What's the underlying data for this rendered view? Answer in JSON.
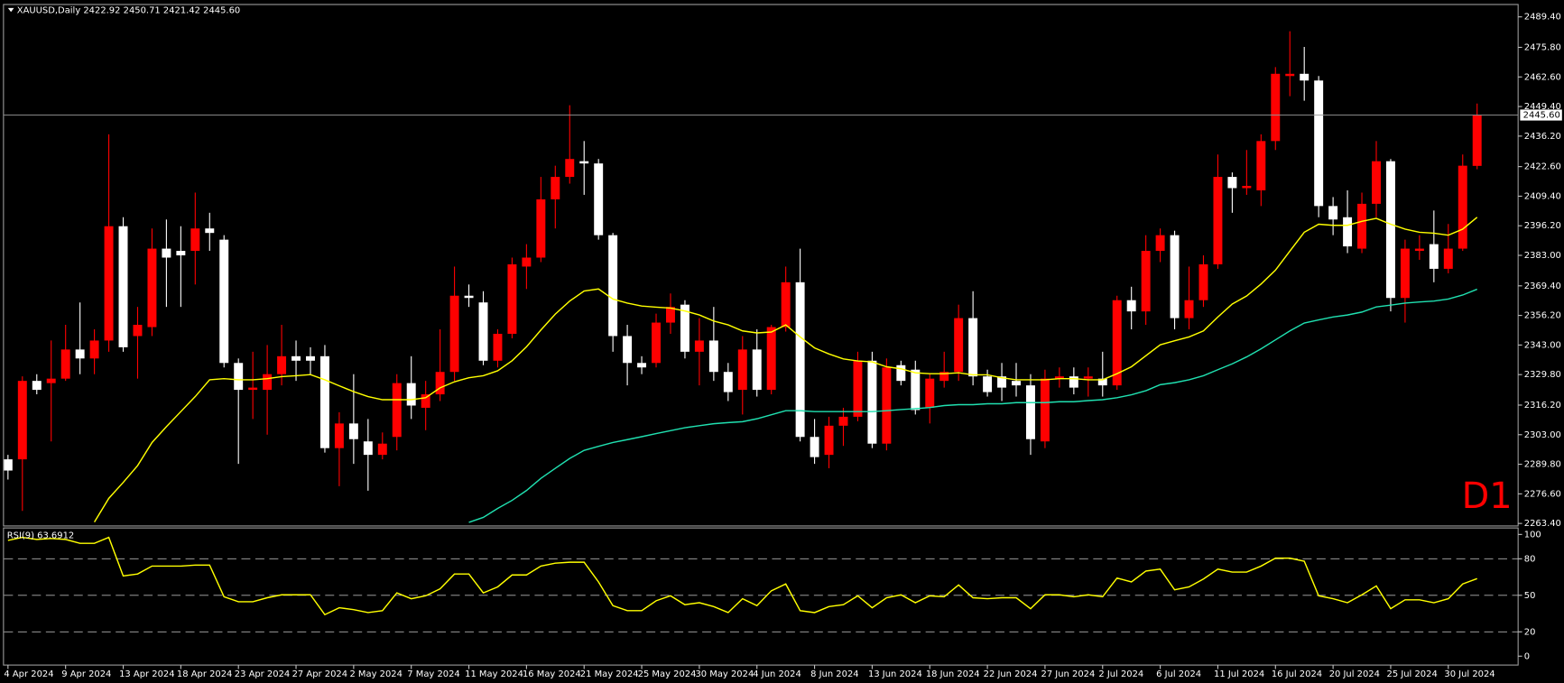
{
  "chart_data": [
    {
      "type": "candlestick",
      "title": "XAUUSD,Daily  2422.92 2450.71 2421.42 2445.60",
      "annotation": "D1",
      "categories": [
        "4 Apr 2024",
        null,
        null,
        null,
        "9 Apr 2024",
        null,
        null,
        null,
        "13 Apr 2024",
        null,
        null,
        null,
        "18 Apr 2024",
        null,
        null,
        null,
        "23 Apr 2024",
        null,
        null,
        null,
        "27 Apr 2024",
        null,
        null,
        null,
        "2 May 2024",
        null,
        null,
        null,
        "7 May 2024",
        null,
        null,
        null,
        "11 May 2024",
        null,
        null,
        null,
        "16 May 2024",
        null,
        null,
        null,
        "21 May 2024",
        null,
        null,
        null,
        "25 May 2024",
        null,
        null,
        null,
        "30 May 2024",
        null,
        null,
        null,
        "4 Jun 2024",
        null,
        null,
        null,
        "8 Jun 2024",
        null,
        null,
        null,
        "13 Jun 2024",
        null,
        null,
        null,
        "18 Jun 2024",
        null,
        null,
        null,
        "22 Jun 2024",
        null,
        null,
        null,
        "27 Jun 2024",
        null,
        null,
        null,
        "2 Jul 2024",
        null,
        null,
        null,
        "6 Jul 2024",
        null,
        null,
        null,
        "11 Jul 2024",
        null,
        null,
        null,
        "16 Jul 2024",
        null,
        null,
        null,
        "20 Jul 2024",
        null,
        null,
        null,
        "25 Jul 2024",
        null,
        null,
        null,
        "30 Jul 2024",
        null,
        null
      ],
      "open": [
        2292,
        2292,
        2327,
        2326,
        2328,
        2341,
        2337,
        2345,
        2396,
        2347,
        2351,
        2386,
        2385,
        2385,
        2395,
        2390,
        2335,
        2323,
        2323,
        2330,
        2338,
        2338,
        2338,
        2297,
        2308,
        2300,
        2294,
        2302,
        2326,
        2315,
        2321,
        2331,
        2365,
        2362,
        2336,
        2348,
        2378,
        2382,
        2408,
        2418,
        2425,
        2424,
        2392,
        2347,
        2335,
        2335,
        2353,
        2361,
        2340,
        2345,
        2331,
        2323,
        2341,
        2323,
        2351,
        2371,
        2302,
        2294,
        2307,
        2311,
        2336,
        2299,
        2334,
        2332,
        2315,
        2327,
        2331,
        2355,
        2329,
        2329,
        2327,
        2325,
        2300,
        2328,
        2329,
        2328,
        2328,
        2325,
        2363,
        2358,
        2385,
        2392,
        2355,
        2363,
        2379,
        2418,
        2413,
        2412,
        2434,
        2463,
        2464,
        2461,
        2405,
        2400,
        2386,
        2406,
        2425,
        2364,
        2385,
        2388,
        2377,
        2386,
        2422.92
      ],
      "high": [
        2294,
        2329,
        2330,
        2345,
        2352,
        2362,
        2350,
        2437,
        2400,
        2360,
        2395,
        2399,
        2396,
        2411,
        2402,
        2392,
        2337,
        2340,
        2343,
        2352,
        2345,
        2342,
        2343,
        2313,
        2330,
        2310,
        2304,
        2330,
        2338,
        2327,
        2350,
        2378,
        2370,
        2367,
        2350,
        2382,
        2388,
        2418,
        2423,
        2450,
        2434,
        2426,
        2393,
        2352,
        2338,
        2357,
        2366,
        2363,
        2355,
        2360,
        2335,
        2347,
        2350,
        2352,
        2378,
        2386,
        2310,
        2311,
        2315,
        2340,
        2340,
        2337,
        2336,
        2336,
        2330,
        2340,
        2361,
        2367,
        2332,
        2335,
        2335,
        2330,
        2332,
        2333,
        2333,
        2333,
        2340,
        2365,
        2369,
        2392,
        2395,
        2394,
        2378,
        2383,
        2428,
        2420,
        2430,
        2437,
        2467,
        2483,
        2476,
        2463,
        2409,
        2412,
        2411,
        2434,
        2426,
        2390,
        2392,
        2403,
        2397,
        2428,
        2450.71
      ],
      "low": [
        2283,
        2269,
        2321,
        2300,
        2327,
        2330,
        2330,
        2340,
        2340,
        2328,
        2347,
        2360,
        2360,
        2370,
        2385,
        2333,
        2290,
        2310,
        2303,
        2325,
        2327,
        2330,
        2295,
        2280,
        2290,
        2278,
        2292,
        2296,
        2310,
        2305,
        2318,
        2327,
        2360,
        2334,
        2333,
        2346,
        2368,
        2380,
        2395,
        2415,
        2410,
        2390,
        2340,
        2325,
        2330,
        2333,
        2348,
        2337,
        2325,
        2327,
        2318,
        2312,
        2320,
        2321,
        2349,
        2300,
        2290,
        2288,
        2298,
        2309,
        2297,
        2296,
        2325,
        2312,
        2308,
        2324,
        2327,
        2325,
        2320,
        2318,
        2320,
        2294,
        2297,
        2324,
        2321,
        2320,
        2320,
        2323,
        2350,
        2352,
        2380,
        2350,
        2350,
        2360,
        2377,
        2402,
        2410,
        2405,
        2430,
        2454,
        2452,
        2400,
        2392,
        2384,
        2384,
        2400,
        2358,
        2353,
        2381,
        2371,
        2375,
        2385,
        2421.42
      ],
      "close": [
        2287,
        2327,
        2323,
        2328,
        2341,
        2337,
        2345,
        2396,
        2342,
        2352,
        2386,
        2382,
        2383,
        2395,
        2393,
        2335,
        2323,
        2324,
        2330,
        2338,
        2336,
        2336,
        2297,
        2308,
        2301,
        2294,
        2299,
        2326,
        2316,
        2321,
        2331,
        2365,
        2364,
        2336,
        2348,
        2379,
        2382,
        2408,
        2418,
        2426,
        2424,
        2392,
        2347,
        2335,
        2333,
        2353,
        2360,
        2340,
        2345,
        2331,
        2322,
        2341,
        2323,
        2351,
        2371,
        2302,
        2293,
        2307,
        2311,
        2336,
        2299,
        2333,
        2327,
        2314,
        2328,
        2331,
        2355,
        2329,
        2322,
        2324,
        2325,
        2301,
        2328,
        2329,
        2324,
        2329,
        2325,
        2363,
        2358,
        2385,
        2392,
        2355,
        2363,
        2379,
        2418,
        2413,
        2414,
        2434,
        2464,
        2464,
        2461,
        2405,
        2399,
        2387,
        2406,
        2425,
        2364,
        2386,
        2386,
        2377,
        2386,
        2423,
        2445.6
      ],
      "up_color": "#ff0000",
      "down_color": "#ffffff",
      "series": [
        {
          "color": "#ffff00",
          "values": [
            null,
            null,
            null,
            null,
            null,
            null,
            2264,
            2274.6,
            2281.7,
            2289.2,
            2299.5,
            2306.6,
            2313.3,
            2320,
            2327.5,
            2328,
            2327.5,
            2327.5,
            2328,
            2328.9,
            2329.3,
            2329.8,
            2327.5,
            2324.8,
            2322.2,
            2320,
            2318.6,
            2318.6,
            2318.6,
            2319.5,
            2323.9,
            2326.6,
            2328.4,
            2329.3,
            2331.5,
            2336,
            2342.2,
            2349.7,
            2356.8,
            2362.6,
            2367.1,
            2368,
            2363.5,
            2361.7,
            2360.4,
            2359.9,
            2359.5,
            2358.2,
            2356.4,
            2353.7,
            2352,
            2349.3,
            2348.4,
            2348.8,
            2352,
            2346.6,
            2341.7,
            2339,
            2336.8,
            2335.9,
            2335.5,
            2333.3,
            2332.4,
            2330.6,
            2330.2,
            2330.2,
            2330.6,
            2329.7,
            2329.7,
            2328.4,
            2327.5,
            2327.5,
            2327.5,
            2328,
            2328,
            2327.5,
            2327.5,
            2330.2,
            2333.3,
            2338.2,
            2343.1,
            2344.9,
            2346.6,
            2349.3,
            2355.5,
            2361.3,
            2364.9,
            2370.2,
            2376.4,
            2384.9,
            2393.3,
            2396.9,
            2396.4,
            2396.4,
            2398.2,
            2399.5,
            2396.9,
            2394.7,
            2393.3,
            2392.9,
            2392,
            2394.7,
            2400
          ]
        },
        {
          "color": "#20e0b0",
          "values": [
            null,
            null,
            null,
            null,
            null,
            null,
            null,
            null,
            null,
            null,
            null,
            null,
            null,
            null,
            null,
            null,
            null,
            null,
            null,
            null,
            null,
            null,
            null,
            null,
            null,
            null,
            null,
            null,
            null,
            null,
            null,
            null,
            2263.9,
            2266.1,
            2270.1,
            2273.7,
            2278.1,
            2283.5,
            2288,
            2292.4,
            2296,
            2297.8,
            2299.5,
            2300.8,
            2302.1,
            2303.5,
            2304.8,
            2306.1,
            2307,
            2307.9,
            2308.4,
            2308.8,
            2310.1,
            2311.9,
            2313.7,
            2313.7,
            2313.3,
            2313.3,
            2313.3,
            2313.3,
            2313.3,
            2313.7,
            2314.2,
            2314.6,
            2315.1,
            2316,
            2316.4,
            2316.4,
            2316.8,
            2316.8,
            2317.3,
            2317.3,
            2317.3,
            2317.7,
            2317.7,
            2318.2,
            2318.6,
            2319.5,
            2320.8,
            2322.6,
            2325.3,
            2326.2,
            2327.5,
            2329.3,
            2332,
            2334.6,
            2337.7,
            2341.3,
            2345.3,
            2349.3,
            2352.8,
            2354.2,
            2355.5,
            2356.4,
            2357.7,
            2360,
            2360.8,
            2361.7,
            2362.2,
            2362.6,
            2363.5,
            2365.3,
            2367.9
          ]
        }
      ],
      "price_line": 2445.6,
      "price_line_label": "2445.60",
      "ylim": [
        2262.5,
        2494.7
      ],
      "yticks": [
        {
          "value": 2489.4,
          "label": "2489.40"
        },
        {
          "value": 2475.8,
          "label": "2475.80"
        },
        {
          "value": 2462.6,
          "label": "2462.60"
        },
        {
          "value": 2449.4,
          "label": "2449.40"
        },
        {
          "value": 2436.2,
          "label": "2436.20"
        },
        {
          "value": 2422.6,
          "label": "2422.60"
        },
        {
          "value": 2409.4,
          "label": "2409.40"
        },
        {
          "value": 2396.2,
          "label": "2396.20"
        },
        {
          "value": 2383,
          "label": "2383.00"
        },
        {
          "value": 2369.4,
          "label": "2369.40"
        },
        {
          "value": 2356.2,
          "label": "2356.20"
        },
        {
          "value": 2343,
          "label": "2343.00"
        },
        {
          "value": 2329.8,
          "label": "2329.80"
        },
        {
          "value": 2316.2,
          "label": "2316.20"
        },
        {
          "value": 2303,
          "label": "2303.00"
        },
        {
          "value": 2289.8,
          "label": "2289.80"
        },
        {
          "value": 2276.6,
          "label": "2276.60"
        },
        {
          "value": 2263.4,
          "label": "2263.40"
        }
      ],
      "grid": false
    },
    {
      "type": "line",
      "title": "RSI(9) 63.6912",
      "color": "#ffff00",
      "values": [
        95.1,
        97.6,
        95.9,
        96.7,
        95.9,
        92.7,
        92.7,
        97.6,
        65.9,
        67.5,
        74,
        74,
        74,
        74.8,
        74.8,
        48.8,
        44.7,
        44.7,
        48,
        50.4,
        50.4,
        50.4,
        34.1,
        39.8,
        38.2,
        35.8,
        37.4,
        52,
        47.2,
        49.6,
        55.3,
        67.5,
        67.5,
        52,
        56.9,
        66.7,
        66.7,
        74,
        76.4,
        77.2,
        77.2,
        61,
        41.5,
        37.4,
        37.4,
        45.5,
        49.6,
        42.3,
        43.9,
        40.7,
        35.8,
        47.2,
        41.5,
        53.7,
        59.3,
        37.4,
        35.8,
        40.7,
        42.3,
        49.6,
        39.8,
        48,
        50.4,
        43.9,
        49.6,
        48.8,
        58.5,
        48,
        47.2,
        48,
        48,
        39,
        50.4,
        50.4,
        48.8,
        50.4,
        48.8,
        64.2,
        61,
        69.9,
        71.5,
        54.5,
        56.9,
        63.4,
        71.5,
        69.1,
        69.1,
        74,
        80.5,
        80.5,
        78,
        49.6,
        47.2,
        43.9,
        50.4,
        57.7,
        39,
        46.3,
        46.3,
        43.9,
        47.2,
        59.3,
        63.69
      ],
      "ylim": [
        -7.3,
        104.1
      ],
      "yticks": [
        0,
        20,
        50,
        80,
        100
      ],
      "levels": [
        20,
        50,
        80
      ]
    }
  ]
}
